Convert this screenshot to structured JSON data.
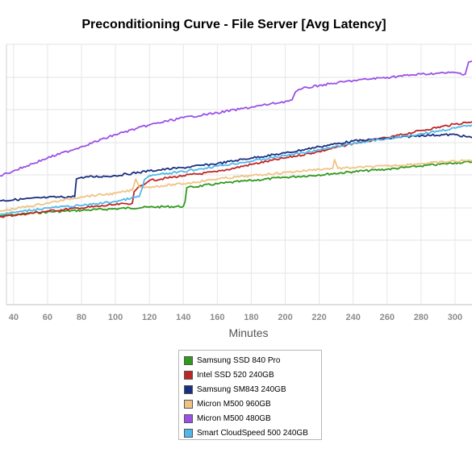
{
  "chart_data": {
    "type": "line",
    "title": "Preconditioning Curve - File Server [Avg Latency]",
    "xlabel": "Minutes",
    "ylabel": "",
    "xlim": [
      32,
      310
    ],
    "x_ticks": [
      40,
      60,
      80,
      100,
      120,
      140,
      160,
      180,
      200,
      220,
      240,
      260,
      280,
      300
    ],
    "grid": true,
    "legend_position": "bottom-center",
    "series": [
      {
        "name": "Samsung SSD 840 Pro",
        "color": "#2f9a1c",
        "points": [
          [
            32,
            268
          ],
          [
            60,
            263
          ],
          [
            80,
            261
          ],
          [
            100,
            259
          ],
          [
            120,
            257
          ],
          [
            140,
            256
          ],
          [
            141,
            250
          ],
          [
            142,
            233
          ],
          [
            160,
            228
          ],
          [
            180,
            224
          ],
          [
            200,
            220
          ],
          [
            220,
            217
          ],
          [
            240,
            213
          ],
          [
            260,
            210
          ],
          [
            280,
            206
          ],
          [
            300,
            202
          ],
          [
            310,
            201
          ]
        ]
      },
      {
        "name": "Intel SSD 520 240GB",
        "color": "#c12424",
        "points": [
          [
            32,
            269
          ],
          [
            60,
            262
          ],
          [
            80,
            258
          ],
          [
            100,
            254
          ],
          [
            110,
            252
          ],
          [
            111,
            238
          ],
          [
            114,
            231
          ],
          [
            117,
            229
          ],
          [
            120,
            224
          ],
          [
            140,
            218
          ],
          [
            160,
            213
          ],
          [
            180,
            204
          ],
          [
            200,
            196
          ],
          [
            220,
            188
          ],
          [
            240,
            178
          ],
          [
            260,
            171
          ],
          [
            280,
            162
          ],
          [
            300,
            154
          ],
          [
            310,
            151
          ]
        ]
      },
      {
        "name": "Samsung SM843 240GB",
        "color": "#1b2f80",
        "points": [
          [
            32,
            249
          ],
          [
            60,
            245
          ],
          [
            76,
            244
          ],
          [
            77,
            222
          ],
          [
            80,
            220
          ],
          [
            100,
            218
          ],
          [
            120,
            212
          ],
          [
            140,
            208
          ],
          [
            160,
            203
          ],
          [
            180,
            196
          ],
          [
            200,
            190
          ],
          [
            220,
            182
          ],
          [
            240,
            175
          ],
          [
            260,
            172
          ],
          [
            280,
            168
          ],
          [
            300,
            167
          ],
          [
            310,
            171
          ]
        ]
      },
      {
        "name": "Micron M500 960GB",
        "color": "#f0c385",
        "points": [
          [
            32,
            262
          ],
          [
            60,
            252
          ],
          [
            80,
            244
          ],
          [
            100,
            240
          ],
          [
            110,
            236
          ],
          [
            112,
            222
          ],
          [
            114,
            232
          ],
          [
            120,
            232
          ],
          [
            140,
            228
          ],
          [
            160,
            222
          ],
          [
            180,
            218
          ],
          [
            200,
            214
          ],
          [
            220,
            210
          ],
          [
            228,
            209
          ],
          [
            229,
            198
          ],
          [
            231,
            209
          ],
          [
            240,
            208
          ],
          [
            260,
            206
          ],
          [
            280,
            203
          ],
          [
            300,
            200
          ],
          [
            310,
            199
          ]
        ]
      },
      {
        "name": "Micron M500 480GB",
        "color": "#9b50e6",
        "points": [
          [
            32,
            218
          ],
          [
            40,
            212
          ],
          [
            60,
            196
          ],
          [
            80,
            182
          ],
          [
            100,
            167
          ],
          [
            120,
            155
          ],
          [
            140,
            146
          ],
          [
            160,
            140
          ],
          [
            180,
            133
          ],
          [
            200,
            126
          ],
          [
            204,
            124
          ],
          [
            206,
            114
          ],
          [
            210,
            110
          ],
          [
            220,
            106
          ],
          [
            240,
            100
          ],
          [
            260,
            96
          ],
          [
            280,
            92
          ],
          [
            300,
            90
          ],
          [
            306,
            92
          ],
          [
            308,
            77
          ],
          [
            310,
            76
          ]
        ]
      },
      {
        "name": "Smart CloudSpeed 500 240GB",
        "color": "#4fb8ea",
        "points": [
          [
            32,
            266
          ],
          [
            60,
            258
          ],
          [
            80,
            255
          ],
          [
            100,
            250
          ],
          [
            114,
            244
          ],
          [
            116,
            232
          ],
          [
            117,
            223
          ],
          [
            120,
            218
          ],
          [
            140,
            213
          ],
          [
            160,
            206
          ],
          [
            180,
            200
          ],
          [
            200,
            193
          ],
          [
            220,
            186
          ],
          [
            240,
            178
          ],
          [
            260,
            172
          ],
          [
            280,
            166
          ],
          [
            300,
            159
          ],
          [
            310,
            155
          ]
        ]
      }
    ]
  }
}
